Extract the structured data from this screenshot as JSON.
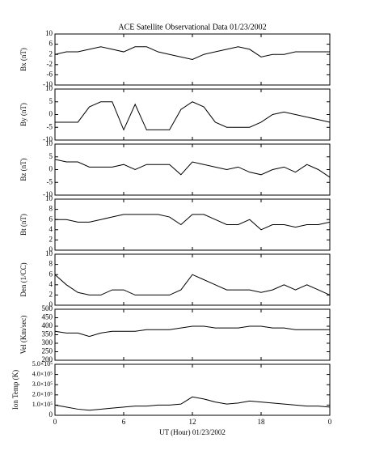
{
  "chart_data": [
    {
      "type": "line",
      "title": "ACE Satellite Observational Data  01/23/2002",
      "ylabel": "Bx (nT)",
      "color": "#000000",
      "x": [
        0,
        1,
        2,
        3,
        4,
        5,
        6,
        7,
        8,
        9,
        10,
        11,
        12,
        13,
        14,
        15,
        16,
        17,
        18,
        19,
        20,
        21,
        22,
        23,
        24
      ],
      "values": [
        2,
        3,
        3,
        4,
        5,
        4,
        3,
        5,
        5,
        3,
        2,
        1,
        0,
        2,
        3,
        4,
        5,
        4,
        1,
        2,
        2,
        3,
        3,
        3,
        3
      ],
      "xlim": [
        0,
        24
      ],
      "ylim": [
        -10,
        10
      ],
      "yticks": [
        -10,
        -6,
        -2,
        2,
        6,
        10
      ]
    },
    {
      "type": "line",
      "ylabel": "By (nT)",
      "color": "#000000",
      "x": [
        0,
        1,
        2,
        3,
        4,
        5,
        6,
        7,
        8,
        9,
        10,
        11,
        12,
        13,
        14,
        15,
        16,
        17,
        18,
        19,
        20,
        21,
        22,
        23,
        24
      ],
      "values": [
        -3,
        -3,
        -3,
        3,
        5,
        5,
        -6,
        4,
        -6,
        -6,
        -6,
        2,
        5,
        3,
        -3,
        -5,
        -5,
        -5,
        -3,
        0,
        1,
        0,
        -1,
        -2,
        -3
      ],
      "xlim": [
        0,
        24
      ],
      "ylim": [
        -10,
        10
      ],
      "yticks": [
        -10,
        -5,
        0,
        5,
        10
      ]
    },
    {
      "type": "line",
      "ylabel": "Bz (nT)",
      "color": "#000000",
      "x": [
        0,
        1,
        2,
        3,
        4,
        5,
        6,
        7,
        8,
        9,
        10,
        11,
        12,
        13,
        14,
        15,
        16,
        17,
        18,
        19,
        20,
        21,
        22,
        23,
        24
      ],
      "values": [
        4,
        3,
        3,
        1,
        1,
        1,
        2,
        0,
        2,
        2,
        2,
        -2,
        3,
        2,
        1,
        0,
        1,
        -1,
        -2,
        0,
        1,
        -1,
        2,
        0,
        -3
      ],
      "xlim": [
        0,
        24
      ],
      "ylim": [
        -10,
        10
      ],
      "yticks": [
        -10,
        -5,
        0,
        5,
        10
      ]
    },
    {
      "type": "line",
      "ylabel": "Bt (nT)",
      "color": "#000000",
      "x": [
        0,
        1,
        2,
        3,
        4,
        5,
        6,
        7,
        8,
        9,
        10,
        11,
        12,
        13,
        14,
        15,
        16,
        17,
        18,
        19,
        20,
        21,
        22,
        23,
        24
      ],
      "values": [
        6,
        6,
        5.5,
        5.5,
        6,
        6.5,
        7,
        7,
        7,
        7,
        6.5,
        5,
        7,
        7,
        6,
        5,
        5,
        6,
        4,
        5,
        5,
        4.5,
        5,
        5,
        5.5
      ],
      "xlim": [
        0,
        24
      ],
      "ylim": [
        0,
        10
      ],
      "yticks": [
        0,
        2,
        4,
        6,
        8,
        10
      ]
    },
    {
      "type": "line",
      "ylabel": "Den (1/CC)",
      "color": "#000000",
      "x": [
        0,
        1,
        2,
        3,
        4,
        5,
        6,
        7,
        8,
        9,
        10,
        11,
        12,
        13,
        14,
        15,
        16,
        17,
        18,
        19,
        20,
        21,
        22,
        23,
        24
      ],
      "values": [
        6,
        4,
        2.5,
        2,
        2,
        3,
        3,
        2,
        2,
        2,
        2,
        3,
        6,
        5,
        4,
        3,
        3,
        3,
        2.5,
        3,
        4,
        3,
        4,
        3,
        2
      ],
      "xlim": [
        0,
        24
      ],
      "ylim": [
        0,
        10
      ],
      "yticks": [
        0,
        2,
        4,
        6,
        8,
        10
      ]
    },
    {
      "type": "line",
      "ylabel": "Vel (Km/sec)",
      "color": "#000000",
      "x": [
        0,
        1,
        2,
        3,
        4,
        5,
        6,
        7,
        8,
        9,
        10,
        11,
        12,
        13,
        14,
        15,
        16,
        17,
        18,
        19,
        20,
        21,
        22,
        23,
        24
      ],
      "values": [
        370,
        360,
        360,
        340,
        360,
        370,
        370,
        370,
        380,
        380,
        380,
        390,
        400,
        400,
        390,
        390,
        390,
        400,
        400,
        390,
        390,
        380,
        380,
        380,
        380
      ],
      "xlim": [
        0,
        24
      ],
      "ylim": [
        200,
        500
      ],
      "yticks": [
        200,
        250,
        300,
        350,
        400,
        450,
        500
      ]
    },
    {
      "type": "line",
      "ylabel": "Ion Temp (K)",
      "xlabel": "UT (Hour)  01/23/2002",
      "color": "#000000",
      "x": [
        0,
        1,
        2,
        3,
        4,
        5,
        6,
        7,
        8,
        9,
        10,
        11,
        12,
        13,
        14,
        15,
        16,
        17,
        18,
        19,
        20,
        21,
        22,
        23,
        24
      ],
      "values": [
        100000,
        80000,
        60000,
        50000,
        60000,
        70000,
        80000,
        90000,
        90000,
        100000,
        100000,
        110000,
        180000,
        160000,
        130000,
        110000,
        120000,
        140000,
        130000,
        120000,
        110000,
        100000,
        90000,
        90000,
        80000
      ],
      "xlim": [
        0,
        24
      ],
      "ylim": [
        0,
        500000
      ],
      "yticks": [
        0,
        {
          "value": 100000,
          "label": "1.0×10⁵"
        },
        {
          "value": 200000,
          "label": "2.0×10⁵"
        },
        {
          "value": 300000,
          "label": "3.0×10⁵"
        },
        {
          "value": 400000,
          "label": "4.0×10⁵"
        },
        {
          "value": 500000,
          "label": "5.0×10⁵"
        }
      ],
      "xticks": [
        0,
        6,
        12,
        18,
        {
          "value": 24,
          "label": "0"
        }
      ]
    }
  ]
}
